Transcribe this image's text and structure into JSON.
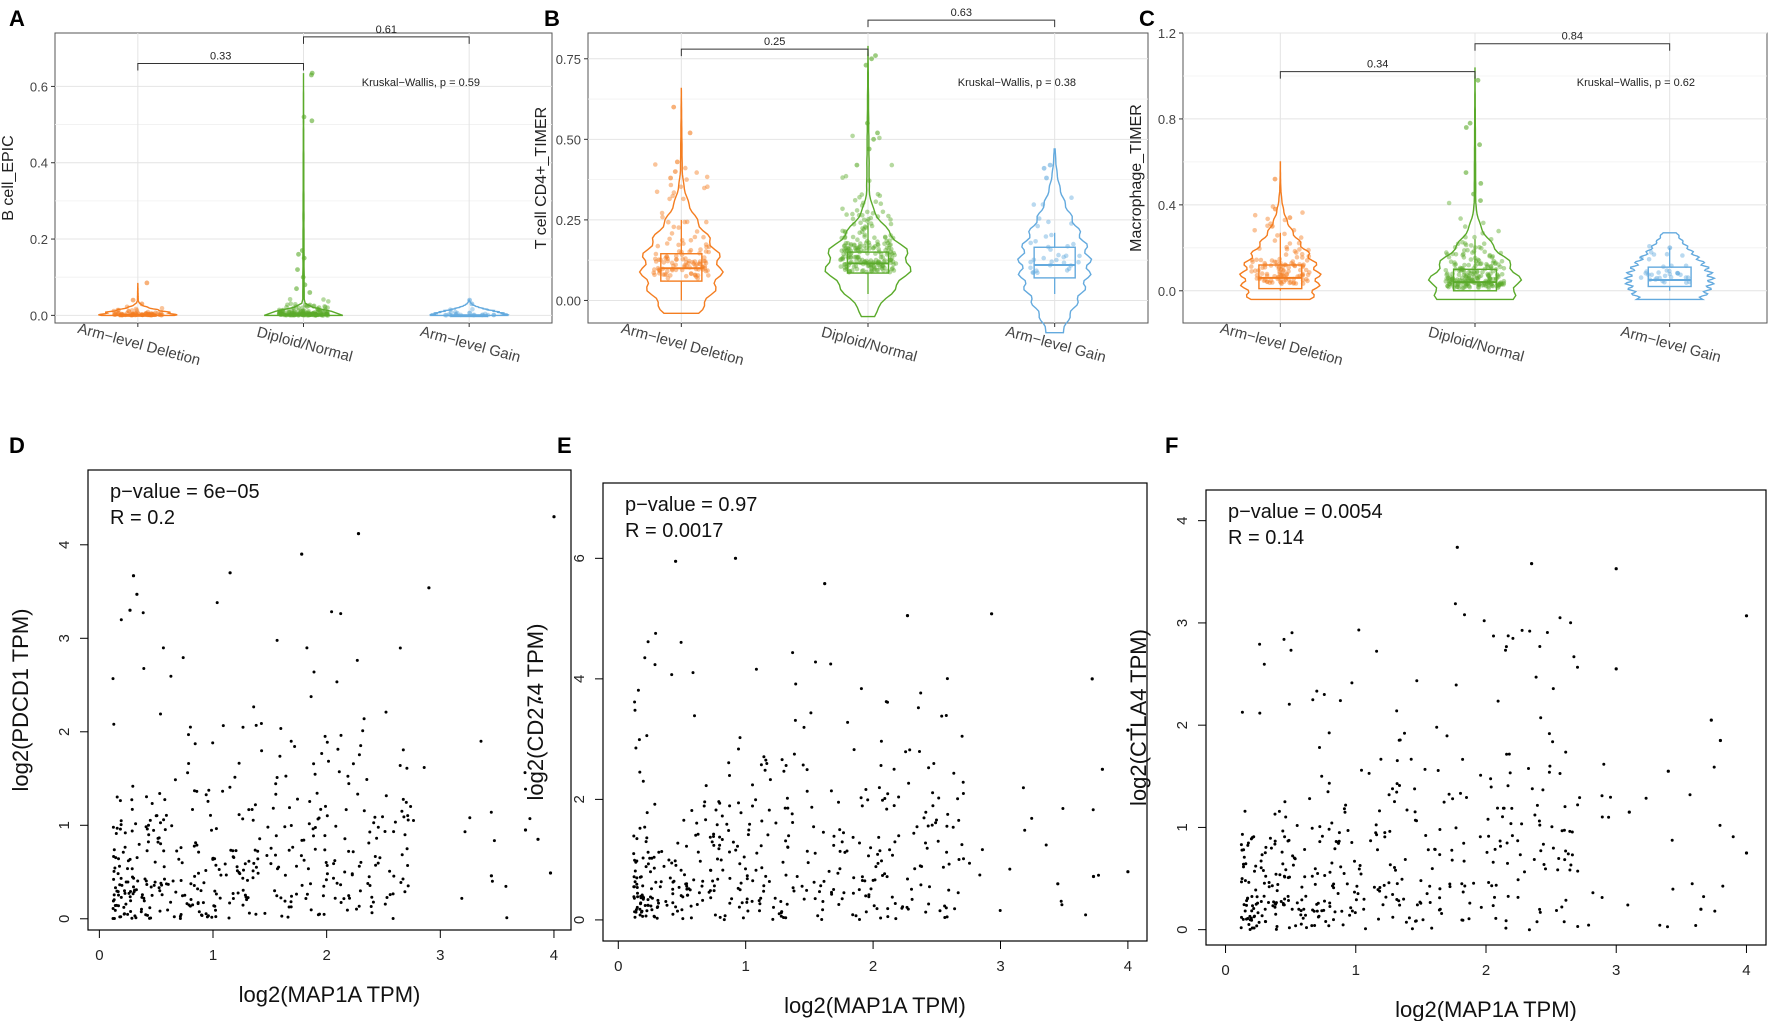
{
  "chart_data": [
    {
      "panel": "A",
      "type": "violin",
      "ylabel": "B cell_EPIC",
      "ylim": [
        -0.02,
        0.74
      ],
      "yticks": [
        "0.0",
        "0.2",
        "0.4",
        "0.6"
      ],
      "ytick_values": [
        0,
        0.2,
        0.4,
        0.6
      ],
      "categories": [
        "Arm−level Deletion",
        "Diploid/Normal",
        "Arm−level Gain"
      ],
      "colors": [
        "#f47d20",
        "#5aaa2a",
        "#64aade"
      ],
      "box": [
        {
          "q1": 0.0,
          "median": 0.0,
          "q3": 0.002,
          "wlo": 0.0,
          "whi": 0.005
        },
        {
          "q1": 0.0,
          "median": 0.0,
          "q3": 0.003,
          "wlo": 0.0,
          "whi": 0.008
        },
        {
          "q1": 0.0,
          "median": 0.0,
          "q3": 0.001,
          "wlo": 0.0,
          "whi": 0.003
        }
      ],
      "max": [
        0.085,
        0.635,
        0.04
      ],
      "min": [
        0,
        0,
        0
      ],
      "point_spread": [
        0.012,
        0.02,
        0.01
      ],
      "point_counts": [
        70,
        160,
        22
      ],
      "outliers": [
        [
          0.085,
          0.04,
          0.03
        ],
        [
          0.635,
          0.63,
          0.52,
          0.51,
          0.17,
          0.16,
          0.15,
          0.12,
          0.1,
          0.08,
          0.07,
          0.06
        ],
        [
          0.04,
          0.03
        ]
      ],
      "violin_halfwidth": [
        0.48,
        0.48,
        0.48
      ],
      "violin_neck": [
        0.02,
        0.02,
        0.03
      ],
      "comparisons": [
        {
          "from": 0,
          "to": 1,
          "label": "0.33",
          "y": 0.66
        },
        {
          "from": 1,
          "to": 2,
          "label": "0.61",
          "y": 0.73
        }
      ],
      "annotation": "Kruskal−Wallis, p = 0.59"
    },
    {
      "panel": "B",
      "type": "violin",
      "ylabel": "T cell CD4+_TIMER",
      "ylim": [
        -0.07,
        0.83
      ],
      "yticks": [
        "0.00",
        "0.25",
        "0.50",
        "0.75"
      ],
      "ytick_values": [
        0,
        0.25,
        0.5,
        0.75
      ],
      "categories": [
        "Arm−level Deletion",
        "Diploid/Normal",
        "Arm−level Gain"
      ],
      "colors": [
        "#f47d20",
        "#5aaa2a",
        "#64aade"
      ],
      "box": [
        {
          "q1": 0.06,
          "median": 0.1,
          "q3": 0.145,
          "wlo": 0.0,
          "whi": 0.25
        },
        {
          "q1": 0.085,
          "median": 0.115,
          "q3": 0.15,
          "wlo": 0.02,
          "whi": 0.24
        },
        {
          "q1": 0.07,
          "median": 0.11,
          "q3": 0.165,
          "wlo": 0.02,
          "whi": 0.21
        }
      ],
      "max": [
        0.66,
        0.79,
        0.47
      ],
      "min": [
        -0.04,
        -0.05,
        -0.1
      ],
      "point_spread": [
        0.16,
        0.14,
        0.12
      ],
      "point_counts": [
        120,
        220,
        35
      ],
      "outliers": [
        [
          0.6,
          0.52,
          0.43,
          0.4,
          0.38
        ],
        [
          0.76,
          0.75,
          0.73,
          0.55,
          0.52,
          0.5,
          0.47,
          0.42
        ],
        [
          0.42,
          0.41,
          0.38
        ]
      ],
      "violin_halfwidth": [
        0.45,
        0.48,
        0.4
      ],
      "violin_neck": [
        0.06,
        0.06,
        0.1
      ],
      "comparisons": [
        {
          "from": 0,
          "to": 1,
          "label": "0.25",
          "y": 0.78
        },
        {
          "from": 1,
          "to": 2,
          "label": "0.63",
          "y": 0.87
        }
      ],
      "annotation": "Kruskal−Wallis, p = 0.38"
    },
    {
      "panel": "C",
      "type": "violin",
      "ylabel": "Macrophage_TIMER",
      "ylim": [
        -0.15,
        1.2
      ],
      "yticks": [
        "0.0",
        "0.4",
        "0.8",
        "1.2"
      ],
      "ytick_values": [
        0,
        0.4,
        0.8,
        1.2
      ],
      "categories": [
        "Arm−level Deletion",
        "Diploid/Normal",
        "Arm−level Gain"
      ],
      "colors": [
        "#f47d20",
        "#5aaa2a",
        "#64aade"
      ],
      "box": [
        {
          "q1": 0.01,
          "median": 0.06,
          "q3": 0.12,
          "wlo": 0.0,
          "whi": 0.27
        },
        {
          "q1": 0.0,
          "median": 0.04,
          "q3": 0.1,
          "wlo": 0.0,
          "whi": 0.24
        },
        {
          "q1": 0.02,
          "median": 0.05,
          "q3": 0.11,
          "wlo": 0.0,
          "whi": 0.2
        }
      ],
      "max": [
        0.6,
        1.04,
        0.27
      ],
      "min": [
        -0.04,
        -0.04,
        -0.04
      ],
      "point_spread": [
        0.14,
        0.14,
        0.09
      ],
      "point_counts": [
        120,
        220,
        35
      ],
      "outliers": [
        [
          0.52,
          0.38,
          0.34,
          0.3
        ],
        [
          0.98,
          0.78,
          0.76,
          0.68,
          0.55,
          0.5,
          0.45,
          0.42
        ],
        [
          0.2
        ]
      ],
      "violin_halfwidth": [
        0.42,
        0.48,
        0.46
      ],
      "violin_neck": [
        0.03,
        0.03,
        0.05
      ],
      "comparisons": [
        {
          "from": 0,
          "to": 1,
          "label": "0.34",
          "y": 1.02
        },
        {
          "from": 1,
          "to": 2,
          "label": "0.84",
          "y": 1.15
        }
      ],
      "annotation": "Kruskal−Wallis, p = 0.62"
    },
    {
      "panel": "D",
      "type": "scatter",
      "xlabel": "log2(MAP1A TPM)",
      "ylabel": "log2(PDCD1 TPM)",
      "xlim": [
        -0.1,
        4.15
      ],
      "ylim": [
        -0.12,
        4.8
      ],
      "xticks": [
        0,
        1,
        2,
        3,
        4
      ],
      "yticks": [
        0,
        1,
        2,
        3,
        4
      ],
      "stat_lines": [
        "p−value = 6e−05",
        "R = 0.2"
      ],
      "n_points": 450,
      "y_scale": 0.72,
      "y_max": 4.3,
      "highlight_points": [
        [
          4.0,
          4.3
        ],
        [
          2.28,
          4.12
        ],
        [
          1.78,
          3.9
        ],
        [
          2.9,
          3.54
        ],
        [
          0.3,
          3.67
        ],
        [
          1.15,
          3.7
        ],
        [
          0.33,
          3.47
        ],
        [
          0.27,
          3.3
        ],
        [
          3.75,
          0.95
        ],
        [
          3.86,
          0.85
        ],
        [
          3.45,
          0.46
        ],
        [
          3.97,
          0.49
        ]
      ]
    },
    {
      "panel": "E",
      "type": "scatter",
      "xlabel": "log2(MAP1A TPM)",
      "ylabel": "log2(CD274 TPM)",
      "xlim": [
        -0.12,
        4.15
      ],
      "ylim": [
        -0.35,
        7.25
      ],
      "xticks": [
        0,
        1,
        2,
        3,
        4
      ],
      "yticks": [
        0,
        2,
        4,
        6
      ],
      "stat_lines": [
        "p−value = 0.97",
        "R = 0.0017"
      ],
      "n_points": 450,
      "y_scale": 1.05,
      "y_max": 6.0,
      "highlight_points": [
        [
          0.45,
          5.95
        ],
        [
          0.92,
          6.0
        ],
        [
          1.62,
          5.58
        ],
        [
          2.27,
          5.05
        ],
        [
          2.93,
          5.08
        ],
        [
          4.0,
          3.15
        ],
        [
          3.72,
          4.0
        ],
        [
          3.8,
          2.5
        ],
        [
          3.73,
          0.72
        ],
        [
          4.0,
          0.8
        ],
        [
          3.45,
          0.6
        ]
      ]
    },
    {
      "panel": "F",
      "type": "scatter",
      "xlabel": "log2(MAP1A TPM)",
      "ylabel": "log2(CTLA4 TPM)",
      "xlim": [
        -0.15,
        4.15
      ],
      "ylim": [
        -0.15,
        4.3
      ],
      "xticks": [
        0,
        1,
        2,
        3,
        4
      ],
      "yticks": [
        0,
        1,
        2,
        3,
        4
      ],
      "stat_lines": [
        "p−value = 0.0054",
        "R = 0.14"
      ],
      "n_points": 450,
      "y_scale": 0.72,
      "y_max": 4.0,
      "highlight_points": [
        [
          1.78,
          3.74
        ],
        [
          2.35,
          3.58
        ],
        [
          3.0,
          3.53
        ],
        [
          4.0,
          3.07
        ],
        [
          3.0,
          2.55
        ],
        [
          3.8,
          1.85
        ],
        [
          3.73,
          2.05
        ],
        [
          3.65,
          0.2
        ],
        [
          4.0,
          0.75
        ],
        [
          3.4,
          1.55
        ],
        [
          3.1,
          1.15
        ]
      ]
    }
  ]
}
